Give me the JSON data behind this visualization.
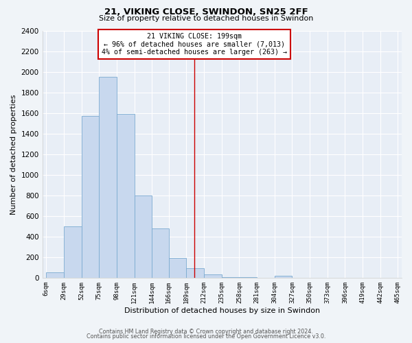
{
  "title": "21, VIKING CLOSE, SWINDON, SN25 2FF",
  "subtitle": "Size of property relative to detached houses in Swindon",
  "xlabel": "Distribution of detached houses by size in Swindon",
  "ylabel": "Number of detached properties",
  "bar_color": "#c8d8ee",
  "bar_edge_color": "#7aaad0",
  "plot_bg_color": "#e8eef6",
  "fig_bg_color": "#f0f4f8",
  "grid_color": "#ffffff",
  "vline_x": 199,
  "vline_color": "#cc0000",
  "bin_edges": [
    6,
    29,
    52,
    75,
    98,
    121,
    144,
    166,
    189,
    212,
    235,
    258,
    281,
    304,
    327,
    350,
    373,
    396,
    419,
    442,
    465
  ],
  "bar_heights": [
    50,
    500,
    1575,
    1950,
    1590,
    800,
    480,
    195,
    90,
    35,
    5,
    3,
    2,
    20,
    0,
    0,
    0,
    0,
    0,
    0
  ],
  "annotation_title": "21 VIKING CLOSE: 199sqm",
  "annotation_line1": "← 96% of detached houses are smaller (7,013)",
  "annotation_line2": "4% of semi-detached houses are larger (263) →",
  "annotation_box_color": "#ffffff",
  "annotation_box_edge": "#cc0000",
  "ylim": [
    0,
    2400
  ],
  "yticks": [
    0,
    200,
    400,
    600,
    800,
    1000,
    1200,
    1400,
    1600,
    1800,
    2000,
    2200,
    2400
  ],
  "footer_line1": "Contains HM Land Registry data © Crown copyright and database right 2024.",
  "footer_line2": "Contains public sector information licensed under the Open Government Licence v3.0."
}
